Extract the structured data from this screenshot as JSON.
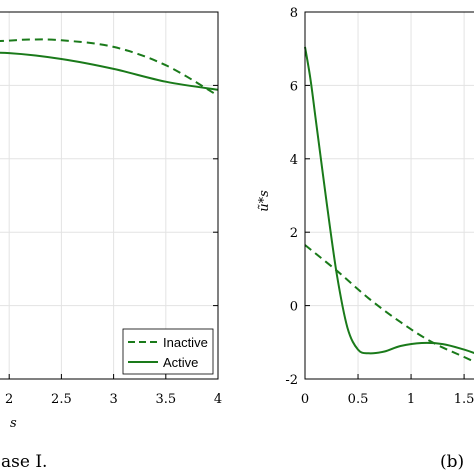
{
  "chart_data": [
    {
      "type": "line",
      "xlabel": "s",
      "xlim": [
        1.5,
        4
      ],
      "xticks": [
        "2",
        "2.5",
        "3",
        "3.5",
        "4"
      ],
      "ylim": [
        -2,
        8
      ],
      "grid": true,
      "legend": "bottom-right",
      "caption": "Case I.",
      "series": [
        {
          "name": "Inactive",
          "style": "dashed",
          "color": "#1a7a1a",
          "x": [
            1.5,
            2.0,
            2.2,
            2.5,
            3.0,
            3.5,
            4.0
          ],
          "y": [
            7.15,
            7.22,
            7.25,
            7.23,
            7.05,
            6.55,
            5.72
          ]
        },
        {
          "name": "Active",
          "style": "solid",
          "color": "#1a7a1a",
          "x": [
            1.5,
            2.0,
            2.5,
            3.0,
            3.5,
            4.0
          ],
          "y": [
            6.9,
            6.88,
            6.72,
            6.45,
            6.1,
            5.88
          ]
        }
      ]
    },
    {
      "type": "line",
      "xlim": [
        0,
        1.65
      ],
      "xticks": [
        "0",
        "0.5",
        "1",
        "1.5"
      ],
      "ylim": [
        -2,
        8
      ],
      "yticks": [
        "-2",
        "0",
        "2",
        "4",
        "6",
        "8"
      ],
      "ylabel": "ũ*s",
      "grid": true,
      "caption": "(b)",
      "series": [
        {
          "style": "dashed",
          "color": "#1a7a1a",
          "x": [
            0,
            0.3,
            0.6,
            0.9,
            1.2,
            1.5,
            1.65
          ],
          "y": [
            1.65,
            0.95,
            0.2,
            -0.45,
            -1.0,
            -1.4,
            -1.6
          ]
        },
        {
          "style": "solid",
          "color": "#1a7a1a",
          "x": [
            0,
            0.05,
            0.1,
            0.2,
            0.3,
            0.4,
            0.5,
            0.6,
            0.75,
            0.9,
            1.1,
            1.3,
            1.5,
            1.65
          ],
          "y": [
            7.05,
            6.2,
            5.1,
            2.9,
            0.85,
            -0.6,
            -1.2,
            -1.3,
            -1.25,
            -1.1,
            -1.02,
            -1.05,
            -1.2,
            -1.35
          ]
        }
      ]
    }
  ]
}
